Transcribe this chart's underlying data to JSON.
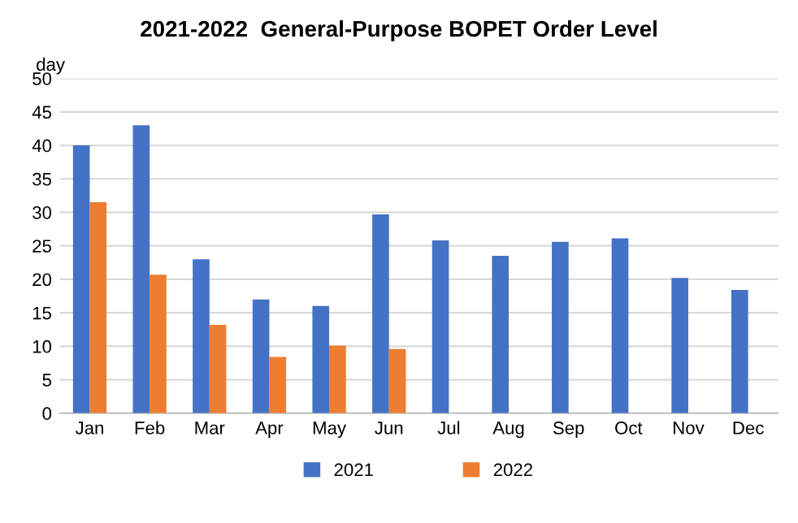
{
  "chart_data": {
    "type": "bar",
    "title": "2021-2022  General-Purpose BOPET Order Level",
    "ylabel": "day",
    "categories": [
      "Jan",
      "Feb",
      "Mar",
      "Apr",
      "May",
      "Jun",
      "Jul",
      "Aug",
      "Sep",
      "Oct",
      "Nov",
      "Dec"
    ],
    "series": [
      {
        "name": "2021",
        "color": "#4472c4",
        "values": [
          40,
          43,
          23,
          17,
          16,
          29.7,
          25.8,
          23.5,
          25.6,
          26.1,
          20.2,
          18.4
        ]
      },
      {
        "name": "2022",
        "color": "#ed7d31",
        "values": [
          31.5,
          20.7,
          13.2,
          8.4,
          10.1,
          9.6,
          null,
          null,
          null,
          null,
          null,
          null
        ]
      }
    ],
    "ylim": [
      0,
      50
    ],
    "yticks": [
      0,
      5,
      10,
      15,
      20,
      25,
      30,
      35,
      40,
      45,
      50
    ],
    "grid": "y",
    "legend": "bottom"
  }
}
